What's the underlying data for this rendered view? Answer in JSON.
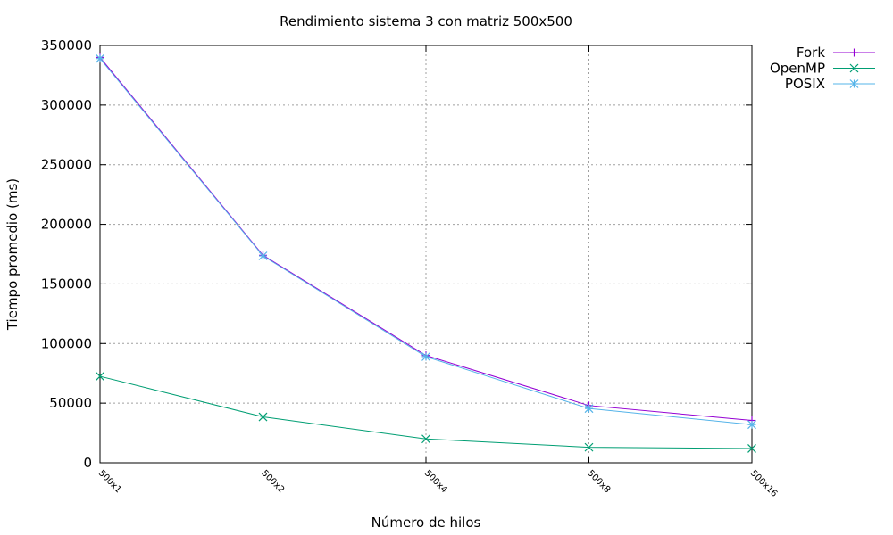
{
  "chart_data": {
    "type": "line",
    "title": "Rendimiento sistema 3 con matriz 500x500",
    "xlabel": "Número de hilos",
    "ylabel": "Tiempo promedio (ms)",
    "categories": [
      "500x1",
      "500x2",
      "500x4",
      "500x8",
      "500x16"
    ],
    "ylim": [
      0,
      350000
    ],
    "yticks": [
      0,
      50000,
      100000,
      150000,
      200000,
      250000,
      300000,
      350000
    ],
    "grid": true,
    "legend_position": "top-right outside",
    "series": [
      {
        "name": "Fork",
        "color": "#9400d3",
        "marker": "plus",
        "values": [
          340000,
          174000,
          90000,
          48000,
          35500
        ]
      },
      {
        "name": "OpenMP",
        "color": "#009e73",
        "marker": "cross",
        "values": [
          72500,
          38500,
          20000,
          13000,
          12000
        ]
      },
      {
        "name": "POSIX",
        "color": "#56b4e9",
        "marker": "star",
        "values": [
          339000,
          173500,
          89000,
          45500,
          32000
        ]
      }
    ]
  }
}
